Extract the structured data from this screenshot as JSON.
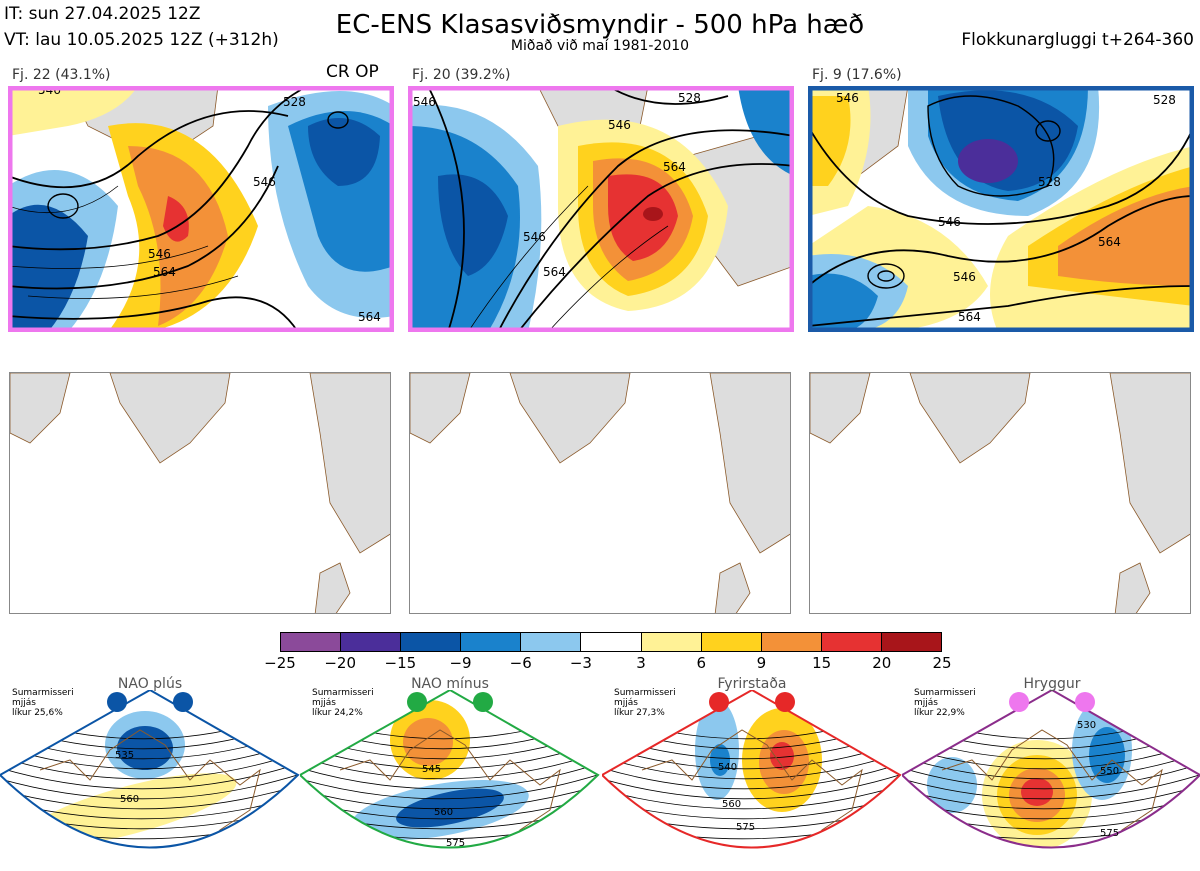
{
  "header": {
    "init_time": "IT: sun 27.04.2025 12Z",
    "valid_time": "VT: lau 10.05.2025 12Z  (+312h)",
    "title": "EC-ENS Klasasviðsmyndir - 500 hPa hæð",
    "subtitle": "Miðað við maí 1981-2010",
    "window": "Flokkunargluggi t+264-360"
  },
  "clusters": [
    {
      "label": "Fj. 22 (43.1%)",
      "extra": "CR OP",
      "border_color": "#ee77ee",
      "contours": [
        "546",
        "546",
        "528",
        "546",
        "564",
        "564"
      ]
    },
    {
      "label": "Fj. 20 (39.2%)",
      "extra": "",
      "border_color": "#ee77ee",
      "contours": [
        "528",
        "546",
        "546",
        "564",
        "564",
        "546"
      ]
    },
    {
      "label": "Fj. 9 (17.6%)",
      "extra": "",
      "border_color": "#1a5aa8",
      "contours": [
        "546",
        "528",
        "546",
        "564",
        "546",
        "564",
        "528"
      ]
    }
  ],
  "colorbar": {
    "ticks": [
      "−25",
      "−20",
      "−15",
      "−9",
      "−6",
      "−3",
      "3",
      "6",
      "9",
      "15",
      "20",
      "25"
    ],
    "colors": [
      "#8b4a9a",
      "#4b2e9a",
      "#0b55a6",
      "#1a82cc",
      "#8cc8ee",
      "#ffffff",
      "#fff296",
      "#ffd21e",
      "#f39138",
      "#e63232",
      "#a8151a"
    ]
  },
  "regimes": [
    {
      "name": "NAO plús",
      "season": "Sumarmisseri",
      "smooth": "mjjás",
      "prob": "líkur 25,6%",
      "dot_color": "#0b55a6",
      "frame_color": "#0b55a6",
      "labels": [
        "535",
        "560"
      ]
    },
    {
      "name": "NAO mínus",
      "season": "Sumarmisseri",
      "smooth": "mjjás",
      "prob": "líkur 24,2%",
      "dot_color": "#22aa44",
      "frame_color": "#22aa44",
      "labels": [
        "545",
        "560",
        "575"
      ]
    },
    {
      "name": "Fyrirstaða",
      "season": "Sumarmisseri",
      "smooth": "mjjás",
      "prob": "líkur 27,3%",
      "dot_color": "#e62828",
      "frame_color": "#e62828",
      "labels": [
        "540",
        "560",
        "575"
      ]
    },
    {
      "name": "Hryggur",
      "season": "Sumarmisseri",
      "smooth": "mjjás",
      "prob": "líkur 22,9%",
      "dot_color": "#ee77ee",
      "frame_color": "#8b2d8b",
      "labels": [
        "530",
        "550",
        "575"
      ]
    }
  ]
}
